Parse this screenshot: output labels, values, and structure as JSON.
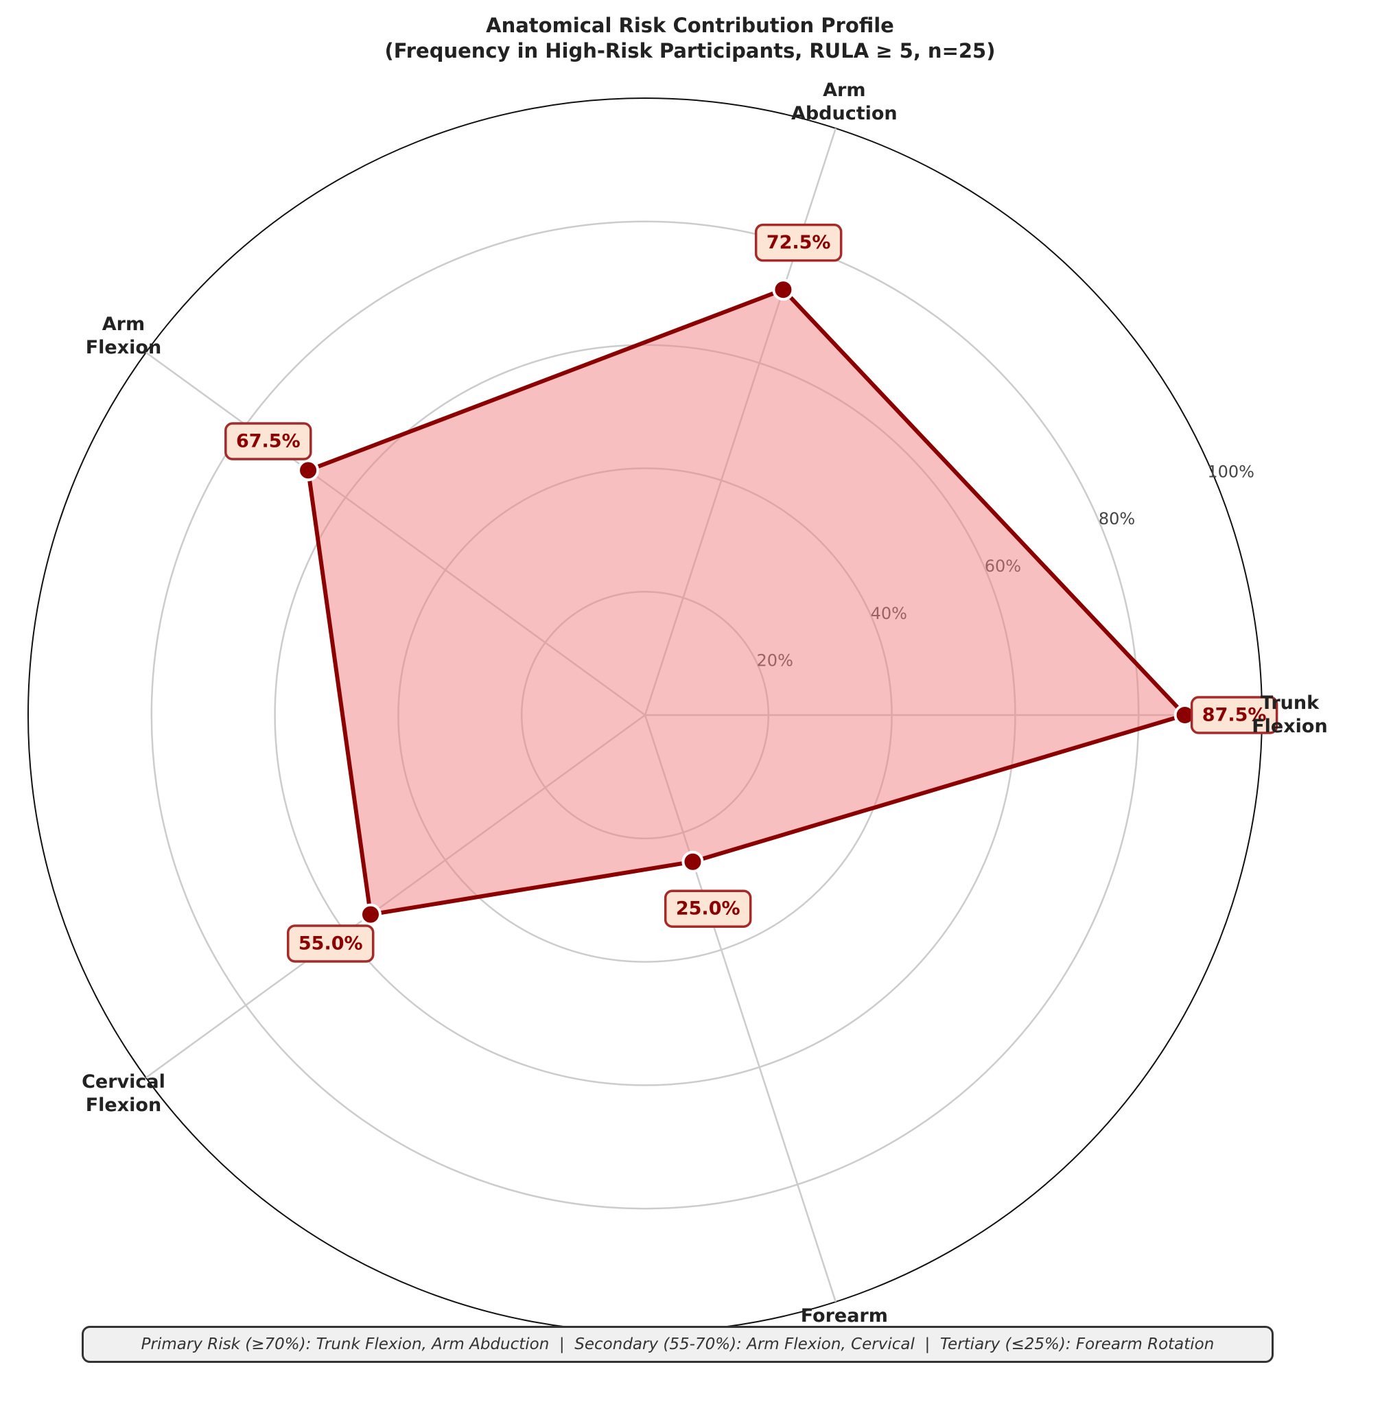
{
  "chart_data": {
    "type": "radar",
    "title": "Anatomical Risk Contribution Profile",
    "subtitle": "(Frequency in High-Risk Participants, RULA ≥ 5, n=25)",
    "categories": [
      "Trunk\nFlexion",
      "Arm\nAbduction",
      "Arm\nFlexion",
      "Cervical\nFlexion",
      "Forearm\nRotation"
    ],
    "values": [
      87.5,
      72.5,
      67.5,
      55.0,
      25.0
    ],
    "value_labels": [
      "87.5%",
      "72.5%",
      "67.5%",
      "55.0%",
      "25.0%"
    ],
    "color": "#8b0000",
    "fill_color": "#f08080",
    "ylim": [
      0,
      100
    ],
    "yticks": [
      {
        "value": 20,
        "label": "20%"
      },
      {
        "value": 40,
        "label": "40%"
      },
      {
        "value": 60,
        "label": "60%"
      },
      {
        "value": 80,
        "label": "80%"
      },
      {
        "value": 100,
        "label": "100%"
      }
    ],
    "grid": true,
    "annotation": "Primary Risk (≥70%): Trunk Flexion, Arm Abduction  |  Secondary (55-70%): Arm Flexion, Cervical  |  Tertiary (≤25%): Forearm Rotation"
  }
}
